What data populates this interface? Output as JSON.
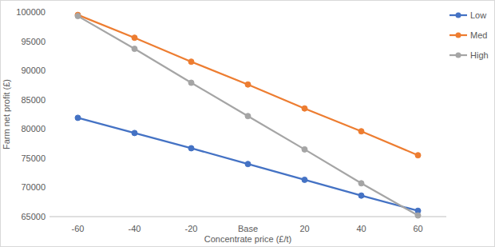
{
  "chart_data": {
    "type": "line",
    "x_label": "Concentrate price (£/t)",
    "y_label": "Farm net profit (£)",
    "categories": [
      "-60",
      "-40",
      "-20",
      "Base",
      "20",
      "40",
      "60"
    ],
    "series": [
      {
        "name": "Low",
        "color": "#4472c4",
        "values": [
          81900,
          79300,
          76700,
          74000,
          71300,
          68600,
          66000
        ]
      },
      {
        "name": "Med",
        "color": "#ed7d31",
        "values": [
          99500,
          95600,
          91500,
          87600,
          83500,
          79600,
          75500
        ]
      },
      {
        "name": "High",
        "color": "#a5a5a5",
        "values": [
          99300,
          93700,
          87900,
          82200,
          76500,
          70700,
          65200
        ]
      }
    ],
    "ylim": [
      65000,
      100000
    ],
    "yticks": [
      65000,
      70000,
      75000,
      80000,
      85000,
      90000,
      95000,
      100000
    ],
    "grid": false,
    "legend": "top-right",
    "marker": "circle"
  }
}
